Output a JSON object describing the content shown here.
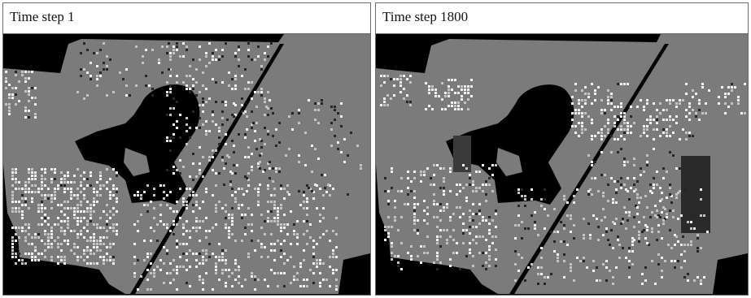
{
  "panels": [
    {
      "title": "Time step 1",
      "cell_colors": {
        "background": "#000000",
        "habitat": "#7b7b7b",
        "white_cell": "#f2f2f2",
        "light_cell": "#c4c4c4",
        "dark_cell": "#262626"
      }
    },
    {
      "title": "Time step 1800",
      "cell_colors": {
        "background": "#000000",
        "habitat": "#7b7b7b",
        "white_cell": "#f2f2f2",
        "light_cell": "#c4c4c4",
        "dark_cell": "#262626"
      }
    }
  ]
}
